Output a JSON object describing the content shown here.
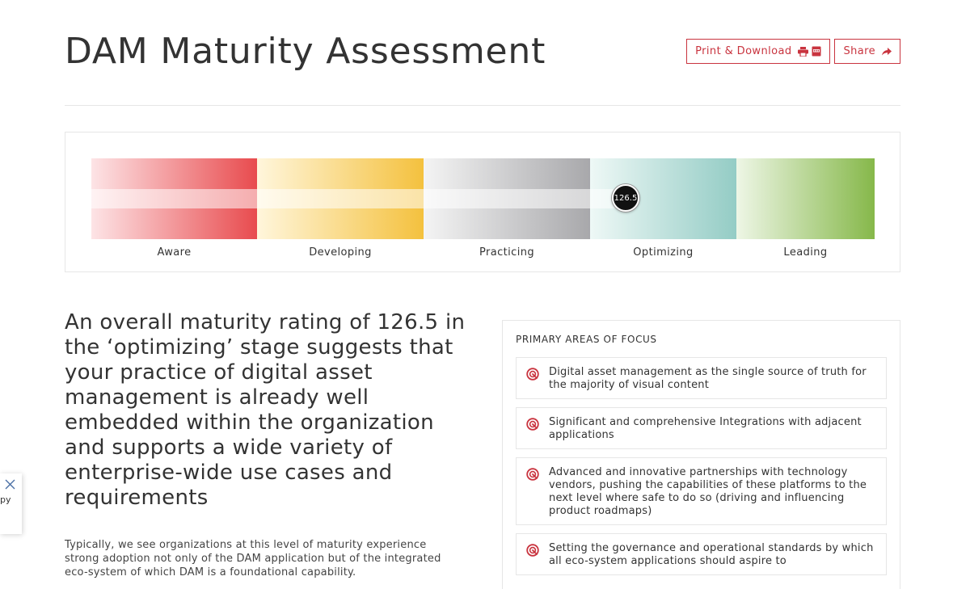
{
  "header": {
    "title": "DAM Maturity Assessment",
    "print_label": "Print & Download",
    "share_label": "Share"
  },
  "scale": {
    "score": 126.5,
    "score_label": "126.5",
    "current_stage": "Optimizing",
    "stages": [
      {
        "label": "Aware",
        "color_from": "#fde4e6",
        "color_to": "#e84b4e"
      },
      {
        "label": "Developing",
        "color_from": "#fff6dc",
        "color_to": "#f4c13e"
      },
      {
        "label": "Practicing",
        "color_from": "#f4f4f4",
        "color_to": "#a8a8ab"
      },
      {
        "label": "Optimizing",
        "color_from": "#eef8f6",
        "color_to": "#94ccc5"
      },
      {
        "label": "Leading",
        "color_from": "#eef6e6",
        "color_to": "#86b84a"
      }
    ]
  },
  "summary": {
    "heading": "An overall maturity rating of 126.5 in the ‘optimizing’ stage suggests that your practice of digital asset management is already well embedded within the organization and supports a wide variety of enterprise-wide use cases and requirements",
    "body": "Typically, we see organizations at this level of maturity experience strong adoption not only of the DAM application but of the integrated eco-system of which DAM is a foundational capability."
  },
  "focus": {
    "title": "PRIMARY AREAS OF FOCUS",
    "items": [
      {
        "text": "Digital asset management as the single source of truth for the majority of visual content"
      },
      {
        "text": "Significant and comprehensive Integrations with adjacent applications"
      },
      {
        "text": "Advanced and innovative partnerships with technology vendors, pushing the capabilities of these platforms to the next level where safe to do so (driving and influencing product roadmaps)"
      },
      {
        "text": "Setting the governance and operational standards by which all eco-system applications should aspire to"
      }
    ]
  },
  "toast": {
    "fragment": "py"
  },
  "colors": {
    "accent": "#c9343f",
    "text": "#333333",
    "border": "#e6e6e6"
  }
}
